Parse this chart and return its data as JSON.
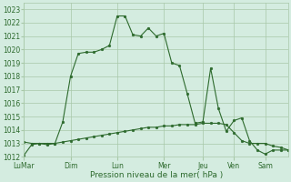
{
  "title": "",
  "xlabel": "Pression niveau de la mer( hPa )",
  "bg_color": "#d4ece0",
  "grid_color": "#a8c8a8",
  "line_color": "#2d6a2d",
  "ylim": [
    1012,
    1023.5
  ],
  "yticks": [
    1012,
    1013,
    1014,
    1015,
    1016,
    1017,
    1018,
    1019,
    1020,
    1021,
    1022,
    1023
  ],
  "xtick_labels": [
    "LuMar",
    "Dim",
    "Lun",
    "Mer",
    "Jeu",
    "Ven",
    "Sam"
  ],
  "xtick_positions": [
    0,
    6,
    12,
    18,
    23,
    27,
    31
  ],
  "line1_x": [
    0,
    1,
    2,
    3,
    4,
    5,
    6,
    7,
    8,
    9,
    10,
    11,
    12,
    13,
    14,
    15,
    16,
    17,
    18,
    19,
    20,
    21,
    22,
    23,
    24,
    25,
    26,
    27,
    28,
    29,
    30,
    31,
    32,
    33,
    34
  ],
  "line1_y": [
    1013.1,
    1013.0,
    1013.0,
    1012.9,
    1013.0,
    1014.6,
    1018.0,
    1019.7,
    1019.8,
    1019.8,
    1020.0,
    1020.3,
    1022.5,
    1022.5,
    1021.1,
    1021.0,
    1021.6,
    1021.0,
    1021.2,
    1019.0,
    1018.8,
    1016.7,
    1014.5,
    1014.6,
    1018.6,
    1015.6,
    1013.9,
    1014.7,
    1014.9,
    1013.2,
    1012.5,
    1012.2,
    1012.5,
    1012.5,
    1012.5
  ],
  "line2_x": [
    0,
    1,
    2,
    3,
    4,
    5,
    6,
    7,
    8,
    9,
    10,
    11,
    12,
    13,
    14,
    15,
    16,
    17,
    18,
    19,
    20,
    21,
    22,
    23,
    24,
    25,
    26,
    27,
    28,
    29,
    30,
    31,
    32,
    33,
    34
  ],
  "line2_y": [
    1012.1,
    1012.9,
    1013.0,
    1013.0,
    1013.0,
    1013.1,
    1013.2,
    1013.3,
    1013.4,
    1013.5,
    1013.6,
    1013.7,
    1013.8,
    1013.9,
    1014.0,
    1014.1,
    1014.2,
    1014.2,
    1014.3,
    1014.3,
    1014.4,
    1014.4,
    1014.4,
    1014.5,
    1014.5,
    1014.5,
    1014.4,
    1013.8,
    1013.2,
    1013.0,
    1013.0,
    1013.0,
    1012.8,
    1012.7,
    1012.5
  ],
  "xlim": [
    0,
    34
  ],
  "marker_size": 2.0,
  "linewidth": 0.8,
  "ytick_fontsize": 5.5,
  "xtick_fontsize": 5.5,
  "xlabel_fontsize": 6.5
}
